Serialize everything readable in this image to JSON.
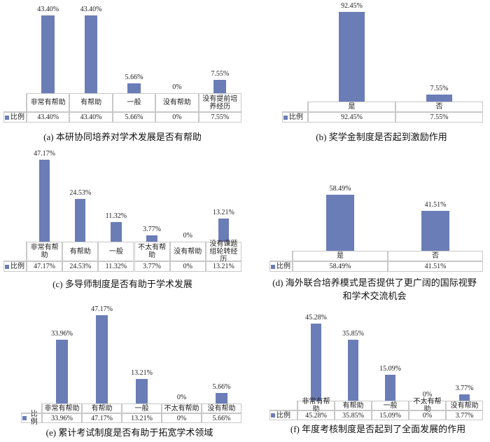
{
  "chart_data": [
    {
      "type": "bar",
      "caption": "(a) 本研协同培养对学术发展是否有帮助",
      "categories": [
        "非常有帮助",
        "有帮助",
        "一般",
        "没有帮助",
        "没有提前培养经历"
      ],
      "series": [
        {
          "name": "比例",
          "color": "#6a7db7",
          "values": [
            43.4,
            43.4,
            5.66,
            0,
            7.55
          ],
          "value_labels": [
            "43.40%",
            "43.40%",
            "5.66%",
            "0%",
            "7.55%"
          ]
        }
      ]
    },
    {
      "type": "bar",
      "caption": "(b) 奖学金制度是否起到激励作用",
      "categories": [
        "是",
        "否"
      ],
      "series": [
        {
          "name": "比例",
          "color": "#6a7db7",
          "values": [
            92.45,
            7.55
          ],
          "value_labels": [
            "92.45%",
            "7.55%"
          ]
        }
      ]
    },
    {
      "type": "bar",
      "caption": "(c) 多导师制度是否有助于学术发展",
      "categories": [
        "非常有帮助",
        "有帮助",
        "一般",
        "不太有帮助",
        "没有帮助",
        "没有课题组轮转经历"
      ],
      "series": [
        {
          "name": "比例",
          "color": "#6a7db7",
          "values": [
            47.17,
            24.53,
            11.32,
            3.77,
            0,
            13.21
          ],
          "value_labels": [
            "47.17%",
            "24.53%",
            "11.32%",
            "3.77%",
            "0%",
            "13.21%"
          ]
        }
      ]
    },
    {
      "type": "bar",
      "caption": "(d) 海外联合培养模式是否提供了更广阔的国际视野和学术交流机会",
      "categories": [
        "是",
        "否"
      ],
      "series": [
        {
          "name": "比例",
          "color": "#6a7db7",
          "values": [
            58.49,
            41.51
          ],
          "value_labels": [
            "58.49%",
            "41.51%"
          ]
        }
      ]
    },
    {
      "type": "bar",
      "caption": "(e) 累计考试制度是否有助于拓宽学术领域",
      "categories": [
        "非常有帮助",
        "有帮助",
        "一般",
        "不太有帮助",
        "没有帮助"
      ],
      "series": [
        {
          "name": "比例",
          "color": "#6a7db7",
          "values": [
            33.96,
            47.17,
            13.21,
            0,
            5.66
          ],
          "value_labels": [
            "33.96%",
            "47.17%",
            "13.21%",
            "0%",
            "5.66%"
          ]
        }
      ]
    },
    {
      "type": "bar",
      "caption": "(f) 年度考核制度是否起到了全面发展的作用",
      "categories": [
        "非常有帮助",
        "有帮助",
        "一般",
        "不太有帮助",
        "没有帮助"
      ],
      "series": [
        {
          "name": "比例",
          "color": "#6a7db7",
          "values": [
            45.28,
            35.85,
            15.09,
            0,
            3.77
          ],
          "value_labels": [
            "45.28%",
            "35.85%",
            "15.09%",
            "0%",
            "3.77%"
          ]
        }
      ]
    }
  ]
}
